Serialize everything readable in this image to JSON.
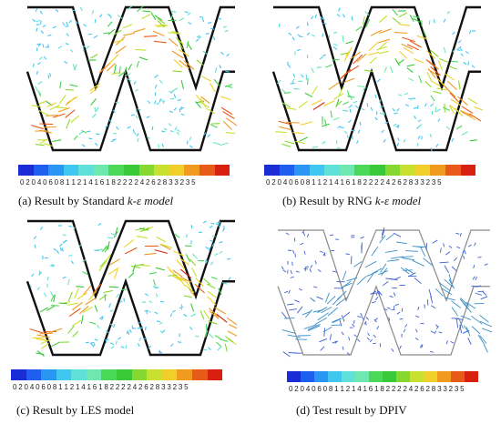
{
  "figure": {
    "panels": [
      {
        "caption_prefix": "(a) Result by Standard ",
        "caption_italic": "k-ε model",
        "caption_suffix": "",
        "colorbar_ticks": "0 2 0 4 0 6 0 8  1  1 2 1 4 1 6 1 8  2  2 2 2 4 2 6 2 8  3  3 2 3 5",
        "style": "colored"
      },
      {
        "caption_prefix": "(b) Result by RNG ",
        "caption_italic": "k-ε model",
        "caption_suffix": "",
        "colorbar_ticks": "0 2 0 4 0 6 0 8  1  1 2 1 4 1 6 1 8  2  2 2 2 4 2 6 2 8  3  3 2 3 5",
        "style": "colored"
      },
      {
        "caption_prefix": "(c) Result by LES model",
        "caption_italic": "",
        "caption_suffix": "",
        "colorbar_ticks": "0 2 0 4 0 6 0 8  1  1 2 1 4 1 6 1 8  2  2 2 2 4 2 6 2 8  3  3 2 3 5",
        "style": "colored"
      },
      {
        "caption_prefix": "(d) Test result by DPIV",
        "caption_italic": "",
        "caption_suffix": "",
        "colorbar_ticks": "0 2 0 4  0 6 0 8  1  1 2 1 4 1 6 1 8  2  2 2 2 4 2 6 2 8  3  3 2 3 5",
        "style": "blue"
      }
    ],
    "colorscale": [
      "#1a2cd6",
      "#1f5ff0",
      "#2a96f4",
      "#3fc7f0",
      "#5fe0d8",
      "#6fe8b0",
      "#49d858",
      "#38c838",
      "#86d830",
      "#c8e030",
      "#f0d028",
      "#f09a20",
      "#e85a18",
      "#d82010"
    ]
  }
}
